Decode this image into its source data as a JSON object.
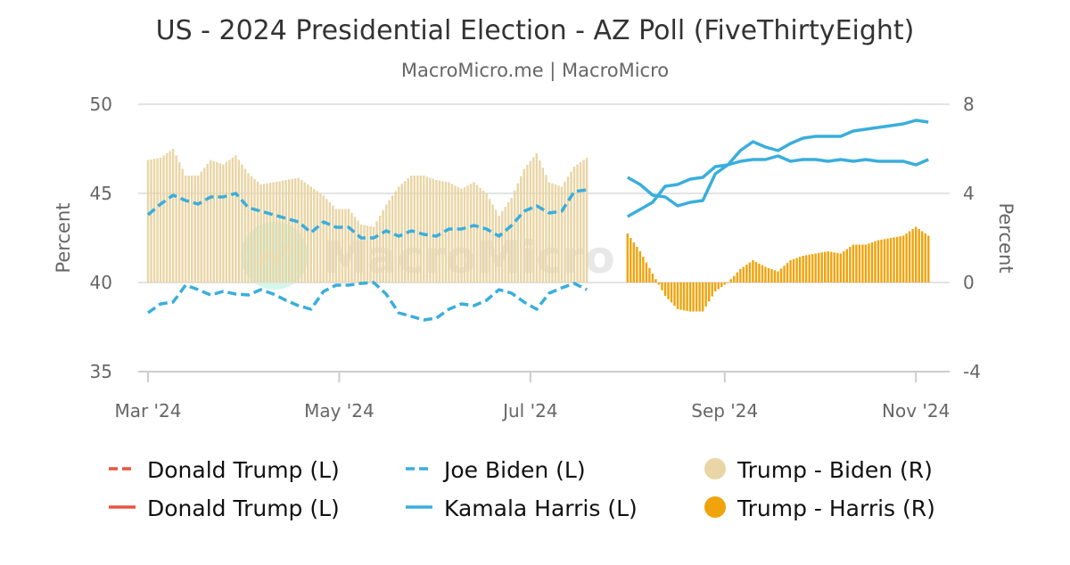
{
  "chart_data": {
    "type": "line",
    "title": "US - 2024 Presidential Election - AZ Poll (FiveThirtyEight)",
    "subtitle": "MacroMicro.me | MacroMicro",
    "watermark": "MacroMicro",
    "ylabel_left": "Percent",
    "ylabel_right": "Percent",
    "ylim_left": [
      35,
      50
    ],
    "ylim_right": [
      -4,
      8
    ],
    "yticks_left": [
      "50",
      "45",
      "40",
      "35"
    ],
    "yticks_right": [
      "8",
      "4",
      "0",
      "-4"
    ],
    "xticks": [
      {
        "date": "2024-03-01",
        "label": "Mar '24"
      },
      {
        "date": "2024-05-01",
        "label": "May '24"
      },
      {
        "date": "2024-07-01",
        "label": "Jul '24"
      },
      {
        "date": "2024-09-01",
        "label": "Sep '24"
      },
      {
        "date": "2024-11-01",
        "label": "Nov '24"
      }
    ],
    "grid": true,
    "legend_placement": "bottom",
    "colors": {
      "trump": "#e8553e",
      "biden": "#3aaedc",
      "harris": "#3aaedc",
      "trump_biden": "#e9d5a5",
      "trump_harris": "#f0a30a"
    },
    "biden_period": {
      "x": [
        "2024-03-01",
        "2024-03-05",
        "2024-03-09",
        "2024-03-13",
        "2024-03-17",
        "2024-03-21",
        "2024-03-25",
        "2024-03-29",
        "2024-04-02",
        "2024-04-06",
        "2024-04-10",
        "2024-04-14",
        "2024-04-18",
        "2024-04-22",
        "2024-04-26",
        "2024-04-30",
        "2024-05-04",
        "2024-05-08",
        "2024-05-12",
        "2024-05-16",
        "2024-05-20",
        "2024-05-24",
        "2024-05-28",
        "2024-06-01",
        "2024-06-05",
        "2024-06-09",
        "2024-06-13",
        "2024-06-17",
        "2024-06-21",
        "2024-06-25",
        "2024-06-29",
        "2024-07-03",
        "2024-07-07",
        "2024-07-11",
        "2024-07-15",
        "2024-07-19"
      ],
      "series": [
        {
          "name": "Donald Trump (L)",
          "axis": "left",
          "style": "dashed",
          "values": [
            43.8,
            44.4,
            44.9,
            44.6,
            44.4,
            44.8,
            44.8,
            45.0,
            44.2,
            44.0,
            43.8,
            43.6,
            43.4,
            42.8,
            43.4,
            43.1,
            43.1,
            42.5,
            42.5,
            42.9,
            42.6,
            42.9,
            42.7,
            42.6,
            43.0,
            43.0,
            43.2,
            43.0,
            42.6,
            43.2,
            44.0,
            44.3,
            43.9,
            44.0,
            45.1,
            45.2
          ]
        },
        {
          "name": "Joe Biden (L)",
          "axis": "left",
          "style": "dashed",
          "values": [
            38.3,
            38.8,
            38.9,
            39.85,
            39.6,
            39.3,
            39.5,
            39.35,
            39.3,
            39.6,
            39.35,
            39.0,
            38.7,
            38.5,
            39.5,
            39.85,
            39.85,
            39.95,
            40.0,
            39.35,
            38.3,
            38.1,
            37.9,
            38.0,
            38.5,
            38.8,
            38.7,
            39.0,
            39.6,
            39.4,
            38.9,
            38.5,
            39.4,
            39.7,
            39.95,
            39.6
          ]
        },
        {
          "name": "Trump - Biden (R)",
          "axis": "right",
          "style": "bar",
          "values": [
            5.5,
            5.6,
            6.0,
            4.8,
            4.8,
            5.5,
            5.3,
            5.7,
            4.9,
            4.4,
            4.5,
            4.6,
            4.7,
            4.3,
            3.9,
            3.3,
            3.3,
            2.6,
            2.5,
            3.5,
            4.3,
            4.8,
            4.8,
            4.6,
            4.5,
            4.2,
            4.5,
            4.0,
            3.0,
            3.8,
            5.1,
            5.8,
            4.5,
            4.3,
            5.2,
            5.6
          ]
        }
      ]
    },
    "harris_period": {
      "x": [
        "2024-08-01",
        "2024-08-05",
        "2024-08-09",
        "2024-08-13",
        "2024-08-17",
        "2024-08-21",
        "2024-08-25",
        "2024-08-29",
        "2024-09-02",
        "2024-09-06",
        "2024-09-10",
        "2024-09-14",
        "2024-09-18",
        "2024-09-22",
        "2024-09-26",
        "2024-09-30",
        "2024-10-04",
        "2024-10-08",
        "2024-10-12",
        "2024-10-16",
        "2024-10-20",
        "2024-10-24",
        "2024-10-28",
        "2024-11-01",
        "2024-11-05"
      ],
      "series": [
        {
          "name": "Donald Trump (L)",
          "axis": "left",
          "style": "solid",
          "values": [
            45.9,
            45.5,
            44.9,
            44.8,
            44.3,
            44.5,
            44.6,
            46.1,
            46.6,
            47.4,
            47.9,
            47.6,
            47.4,
            47.8,
            48.1,
            48.2,
            48.2,
            48.2,
            48.5,
            48.6,
            48.7,
            48.8,
            48.9,
            49.1,
            49.0
          ]
        },
        {
          "name": "Kamala Harris (L)",
          "axis": "left",
          "style": "solid",
          "values": [
            43.7,
            44.1,
            44.5,
            45.4,
            45.5,
            45.8,
            45.9,
            46.5,
            46.6,
            46.8,
            46.9,
            46.9,
            47.1,
            46.8,
            46.9,
            46.9,
            46.8,
            46.9,
            46.8,
            46.9,
            46.8,
            46.8,
            46.8,
            46.6,
            46.9
          ]
        },
        {
          "name": "Trump - Harris (R)",
          "axis": "right",
          "style": "bar",
          "values": [
            2.2,
            1.4,
            0.4,
            -0.6,
            -1.2,
            -1.3,
            -1.3,
            -0.4,
            0.0,
            0.6,
            1.0,
            0.7,
            0.5,
            1.0,
            1.2,
            1.3,
            1.4,
            1.3,
            1.7,
            1.7,
            1.9,
            2.0,
            2.1,
            2.5,
            2.1
          ]
        }
      ]
    },
    "legend": [
      {
        "label": "Donald Trump (L)",
        "marker": "dashed-line",
        "color": "#e8553e"
      },
      {
        "label": "Joe Biden (L)",
        "marker": "dashed-line",
        "color": "#3aaedc"
      },
      {
        "label": "Trump - Biden (R)",
        "marker": "circle",
        "color": "#e9d5a5"
      },
      {
        "label": "Donald Trump (L)",
        "marker": "solid-line",
        "color": "#e8553e"
      },
      {
        "label": "Kamala Harris (L)",
        "marker": "solid-line",
        "color": "#3aaedc"
      },
      {
        "label": "Trump - Harris (R)",
        "marker": "circle",
        "color": "#f0a30a"
      }
    ]
  }
}
